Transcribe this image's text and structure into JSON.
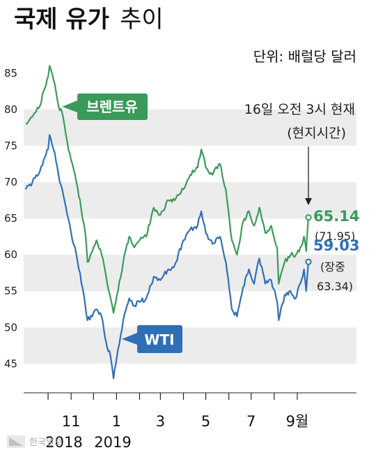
{
  "header": {
    "title_bold": "국제 유가",
    "title_light": "추이",
    "unit": "단위: 배럴당 달러"
  },
  "note": {
    "line1": "16일 오전 3시 현재",
    "line2": "(현지시간)"
  },
  "tags": {
    "brent": "브렌트유",
    "wti": "WTI"
  },
  "latest": {
    "brent_value": "65.14",
    "brent_high": "(71.95)",
    "wti_value": "59.03",
    "wti_intraday_label": "(장중",
    "wti_high": "63.34)"
  },
  "watermark": "한국일보",
  "colors": {
    "brent": "#3a9a5a",
    "wti": "#2f6fb6",
    "band": "#ececec"
  },
  "chart_data": {
    "type": "line",
    "title": "국제 유가 추이",
    "ylabel": "단위: 배럴당 달러",
    "ylim": [
      41,
      87
    ],
    "yticks": [
      "45",
      "50",
      "55",
      "60",
      "65",
      "70",
      "75",
      "80",
      "85"
    ],
    "xticks": [
      "11",
      "1",
      "3",
      "5",
      "7",
      "9월"
    ],
    "year_labels": [
      "2018",
      "2019"
    ],
    "x_range": [
      "2018-09-01",
      "2019-09-16"
    ],
    "x_tick_dates": [
      "2018-11-01",
      "2019-01-01",
      "2019-03-01",
      "2019-05-01",
      "2019-07-01",
      "2019-09-01"
    ],
    "grid": "alternating horizontal bands",
    "legend": "inline labels",
    "series": [
      {
        "name": "브렌트유",
        "dates": [
          "2018-09-01",
          "2018-09-10",
          "2018-09-20",
          "2018-09-25",
          "2018-10-01",
          "2018-10-03",
          "2018-10-10",
          "2018-10-15",
          "2018-10-20",
          "2018-10-25",
          "2018-11-01",
          "2018-11-08",
          "2018-11-13",
          "2018-11-20",
          "2018-11-23",
          "2018-12-01",
          "2018-12-05",
          "2018-12-12",
          "2018-12-18",
          "2018-12-24",
          "2018-12-28",
          "2019-01-03",
          "2019-01-10",
          "2019-01-18",
          "2019-01-25",
          "2019-02-01",
          "2019-02-10",
          "2019-02-20",
          "2019-03-01",
          "2019-03-12",
          "2019-03-20",
          "2019-04-01",
          "2019-04-10",
          "2019-04-20",
          "2019-04-25",
          "2019-05-01",
          "2019-05-10",
          "2019-05-20",
          "2019-05-28",
          "2019-06-05",
          "2019-06-12",
          "2019-06-20",
          "2019-06-28",
          "2019-07-05",
          "2019-07-12",
          "2019-07-20",
          "2019-07-28",
          "2019-08-05",
          "2019-08-07",
          "2019-08-15",
          "2019-08-23",
          "2019-08-30",
          "2019-09-05",
          "2019-09-10",
          "2019-09-13",
          "2019-09-16"
        ],
        "values": [
          78,
          79,
          80.5,
          82.5,
          84.5,
          86,
          83.5,
          80.5,
          79.5,
          76.5,
          73,
          70,
          67.5,
          63,
          59,
          61,
          62,
          60,
          57,
          54,
          52,
          55,
          59,
          62.5,
          61,
          62,
          62.5,
          66.5,
          65.5,
          67.5,
          67.5,
          69,
          71,
          72,
          74.5,
          72,
          71,
          72.5,
          69,
          62,
          60,
          64.5,
          66,
          64,
          66.5,
          63,
          64,
          61,
          56,
          59,
          60,
          60,
          61,
          62.5,
          60.5,
          65.14
        ]
      },
      {
        "name": "WTI",
        "dates": [
          "2018-09-01",
          "2018-09-10",
          "2018-09-20",
          "2018-09-25",
          "2018-10-01",
          "2018-10-03",
          "2018-10-10",
          "2018-10-15",
          "2018-10-20",
          "2018-10-25",
          "2018-11-01",
          "2018-11-08",
          "2018-11-13",
          "2018-11-20",
          "2018-11-23",
          "2018-12-01",
          "2018-12-05",
          "2018-12-12",
          "2018-12-18",
          "2018-12-24",
          "2018-12-28",
          "2019-01-03",
          "2019-01-10",
          "2019-01-18",
          "2019-01-25",
          "2019-02-01",
          "2019-02-10",
          "2019-02-20",
          "2019-03-01",
          "2019-03-12",
          "2019-03-20",
          "2019-04-01",
          "2019-04-10",
          "2019-04-20",
          "2019-04-25",
          "2019-05-01",
          "2019-05-10",
          "2019-05-20",
          "2019-05-28",
          "2019-06-05",
          "2019-06-12",
          "2019-06-20",
          "2019-06-28",
          "2019-07-05",
          "2019-07-12",
          "2019-07-20",
          "2019-07-28",
          "2019-08-05",
          "2019-08-07",
          "2019-08-15",
          "2019-08-23",
          "2019-08-30",
          "2019-09-05",
          "2019-09-10",
          "2019-09-13",
          "2019-09-16"
        ],
        "values": [
          69,
          70,
          71.5,
          73,
          74.5,
          76.5,
          74,
          71,
          69,
          66.5,
          63,
          60,
          57.5,
          53,
          51,
          52,
          52.5,
          51.5,
          48,
          46,
          43,
          47,
          51,
          54,
          53,
          53.5,
          54,
          57,
          56.5,
          58,
          58.5,
          62,
          63.5,
          64,
          66,
          63,
          61.5,
          62.5,
          59,
          52.5,
          51.5,
          55.5,
          58,
          56,
          59.5,
          56,
          56.5,
          53.5,
          51,
          54.5,
          55,
          54,
          56,
          58,
          55,
          59.03
        ]
      }
    ]
  }
}
